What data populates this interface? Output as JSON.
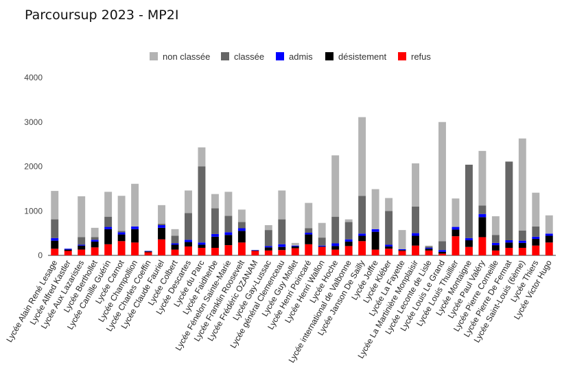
{
  "chart_data": {
    "type": "bar",
    "stacked": true,
    "title": "Parcoursup 2023 - MP2I",
    "xlabel": "",
    "ylabel": "",
    "ylim": [
      0,
      4000
    ],
    "yticks": [
      0,
      1000,
      2000,
      3000,
      4000
    ],
    "grid": false,
    "legend": "top",
    "categories": [
      "Lycée Alain René Lesage",
      "Lycée Alfred Kastler",
      "Lycée Aux Lazaristes",
      "Lycée Berthollet",
      "Lycée Camille Guérin",
      "Lycée Carnot",
      "Lycée Champollion",
      "Lycée Charles Coeffin",
      "Lycée Claude Fauriel",
      "Lycée Colbert",
      "Lycée Descartes",
      "Lycée du Parc",
      "Lycée Faidherbe",
      "Lycée Fénelon Sainte-Marie",
      "Lycée Franklin Roosevelt",
      "Lycée Frédéric OZANAM",
      "Lycée Gay-Lussac",
      "Lycée général Clemenceau",
      "Lycée Guy Mollet",
      "Lycée Henri Poincaré",
      "Lycée Henri Wallon",
      "Lycée Hoche",
      "Lycée international de Valbonne",
      "Lycée Janson De Sailly",
      "Lycée Joffre",
      "Lycée Kléber",
      "Lycée La Fayette",
      "Lycée La Martinière Monplaisir",
      "Lycée Leconte de Lisle",
      "Lycée Louis Le Grand",
      "Lycée Louis Thuillier",
      "Lycée Montaigne",
      "Lycée Paul Valéry",
      "Lycée Pierre Corneille",
      "Lycée Pierre De Fermat",
      "Lycée Saint-Louis (6ème)",
      "Lycée Thiers",
      "Lycée Victor Hugo"
    ],
    "series": [
      {
        "name": "refus",
        "color": "#ff0000",
        "values": [
          150,
          100,
          130,
          180,
          250,
          320,
          290,
          70,
          360,
          130,
          200,
          170,
          170,
          230,
          290,
          100,
          110,
          120,
          160,
          250,
          190,
          130,
          210,
          320,
          130,
          150,
          100,
          220,
          110,
          40,
          430,
          190,
          410,
          110,
          170,
          170,
          220,
          290
        ]
      },
      {
        "name": "désistement",
        "color": "#000000",
        "values": [
          180,
          30,
          90,
          130,
          340,
          150,
          300,
          20,
          260,
          110,
          100,
          70,
          250,
          230,
          260,
          10,
          70,
          70,
          40,
          220,
          10,
          80,
          100,
          120,
          400,
          50,
          20,
          220,
          40,
          40,
          150,
          150,
          450,
          120,
          120,
          110,
          150,
          150
        ]
      },
      {
        "name": "admis",
        "color": "#0000ff",
        "values": [
          60,
          20,
          20,
          40,
          50,
          50,
          60,
          10,
          60,
          30,
          50,
          50,
          60,
          60,
          60,
          10,
          30,
          60,
          20,
          40,
          20,
          60,
          50,
          50,
          60,
          40,
          20,
          60,
          20,
          40,
          60,
          50,
          70,
          50,
          50,
          50,
          50,
          50
        ]
      },
      {
        "name": "classée",
        "color": "#666666",
        "values": [
          420,
          0,
          170,
          60,
          230,
          30,
          0,
          0,
          30,
          170,
          600,
          1710,
          580,
          370,
          140,
          0,
          360,
          560,
          0,
          100,
          180,
          600,
          390,
          850,
          0,
          760,
          0,
          600,
          30,
          200,
          0,
          1650,
          190,
          180,
          1770,
          230,
          230,
          0
        ]
      },
      {
        "name": "non classée",
        "color": "#b3b3b3",
        "values": [
          640,
          0,
          920,
          210,
          560,
          790,
          960,
          0,
          420,
          150,
          510,
          430,
          320,
          540,
          280,
          0,
          110,
          650,
          60,
          570,
          330,
          1380,
          60,
          1770,
          900,
          290,
          430,
          970,
          20,
          2680,
          640,
          0,
          1230,
          420,
          0,
          2070,
          760,
          410
        ]
      }
    ],
    "stack_order": [
      "refus",
      "désistement",
      "admis",
      "classée",
      "non classée"
    ],
    "legend_order": [
      "non classée",
      "classée",
      "admis",
      "désistement",
      "refus"
    ]
  }
}
